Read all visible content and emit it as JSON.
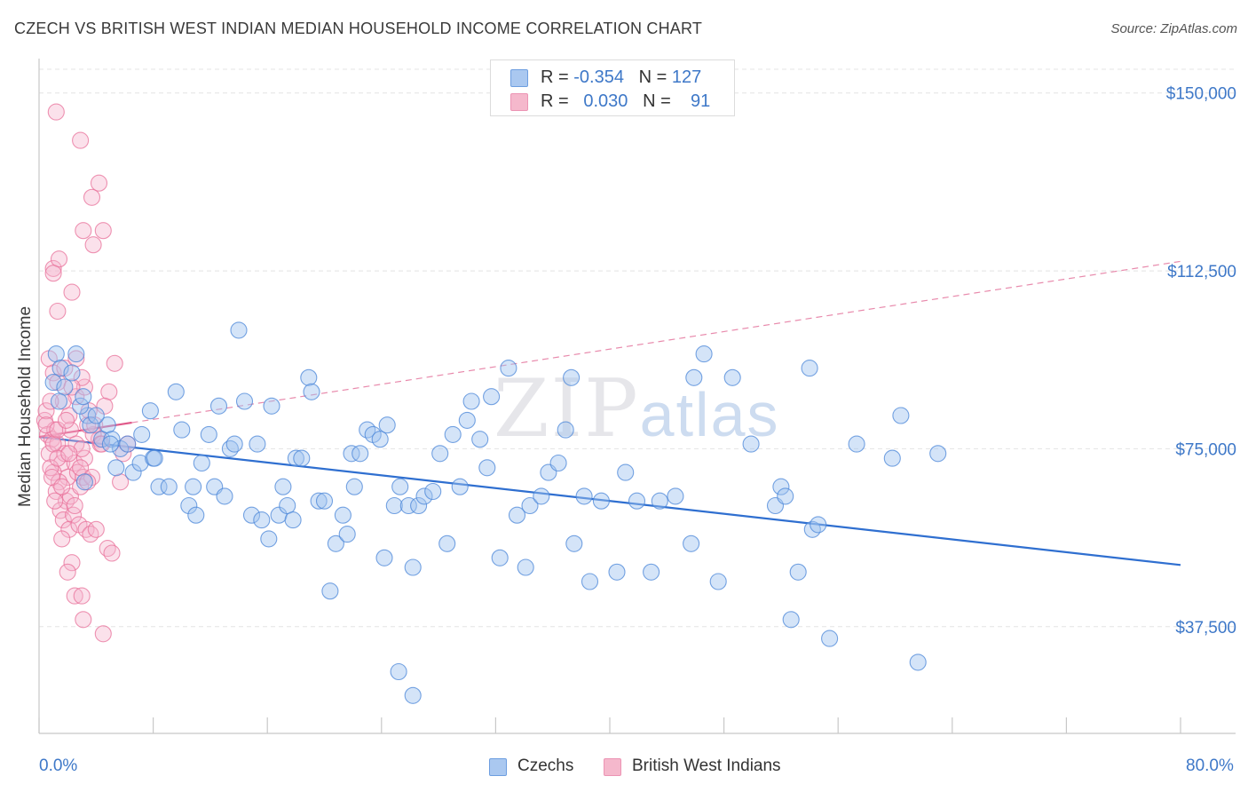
{
  "title": "CZECH VS BRITISH WEST INDIAN MEDIAN HOUSEHOLD INCOME CORRELATION CHART",
  "source": "Source: ZipAtlas.com",
  "watermark": {
    "zip": "ZIP",
    "atlas": "atlas"
  },
  "legend": {
    "rows": [
      {
        "r_label": "R =",
        "r_value": "-0.354",
        "n_label": "N =",
        "n_value": "127",
        "color": "#aac8f0"
      },
      {
        "r_label": "R =",
        "r_value": "0.030",
        "n_label": "N =",
        "n_value": "91",
        "color": "#f5b8cc"
      }
    ]
  },
  "bottom_legend": [
    {
      "label": "Czechs",
      "color": "#aac8f0"
    },
    {
      "label": "British West Indians",
      "color": "#f5b8cc"
    }
  ],
  "x_axis_labels": {
    "min": "0.0%",
    "max": "80.0%"
  },
  "chart_data": {
    "type": "scatter",
    "title": "CZECH VS BRITISH WEST INDIAN MEDIAN HOUSEHOLD INCOME CORRELATION CHART",
    "xlabel": "",
    "ylabel": "Median Household Income",
    "xlim": [
      0,
      80
    ],
    "ylim": [
      15000,
      155000
    ],
    "y_ticks": [
      {
        "value": 37500,
        "label": "$37,500"
      },
      {
        "value": 75000,
        "label": "$75,000"
      },
      {
        "value": 112500,
        "label": "$112,500"
      },
      {
        "value": 150000,
        "label": "$150,000"
      }
    ],
    "x_ticks": [
      0,
      8,
      16,
      24,
      32,
      40,
      48,
      56,
      64,
      72,
      80
    ],
    "grid": true,
    "series": [
      {
        "name": "Czechs",
        "color": "#4a86d8",
        "fill": "rgba(160,195,240,0.45)",
        "trend": {
          "x": [
            0,
            80
          ],
          "y": [
            77500,
            50500
          ],
          "style": "solid"
        },
        "points": [
          [
            1.2,
            95
          ],
          [
            1.5,
            92
          ],
          [
            1.0,
            89
          ],
          [
            1.8,
            88
          ],
          [
            1.4,
            85
          ],
          [
            2.6,
            95
          ],
          [
            2.3,
            91
          ],
          [
            3.4,
            82
          ],
          [
            2.9,
            84
          ],
          [
            3.6,
            80
          ],
          [
            4.4,
            77
          ],
          [
            4.8,
            80
          ],
          [
            5.1,
            77
          ],
          [
            3.2,
            68
          ],
          [
            5.7,
            75
          ],
          [
            6.6,
            70
          ],
          [
            7.1,
            72
          ],
          [
            7.2,
            78
          ],
          [
            8.0,
            73
          ],
          [
            8.4,
            67
          ],
          [
            7.8,
            83
          ],
          [
            9.6,
            87
          ],
          [
            10.0,
            79
          ],
          [
            10.8,
            67
          ],
          [
            11.4,
            72
          ],
          [
            10.5,
            63
          ],
          [
            11.0,
            61
          ],
          [
            11.9,
            78
          ],
          [
            12.3,
            67
          ],
          [
            12.6,
            84
          ],
          [
            13.0,
            65
          ],
          [
            13.4,
            75
          ],
          [
            13.7,
            76
          ],
          [
            14.4,
            85
          ],
          [
            14.9,
            61
          ],
          [
            15.3,
            76
          ],
          [
            15.6,
            60
          ],
          [
            16.1,
            56
          ],
          [
            16.3,
            84
          ],
          [
            16.8,
            61
          ],
          [
            17.1,
            67
          ],
          [
            17.4,
            63
          ],
          [
            17.8,
            60
          ],
          [
            18.0,
            73
          ],
          [
            18.4,
            73
          ],
          [
            18.9,
            90
          ],
          [
            19.1,
            87
          ],
          [
            19.6,
            64
          ],
          [
            20.0,
            64
          ],
          [
            20.4,
            45
          ],
          [
            20.8,
            55
          ],
          [
            21.3,
            61
          ],
          [
            21.6,
            57
          ],
          [
            21.9,
            74
          ],
          [
            22.1,
            67
          ],
          [
            22.5,
            74
          ],
          [
            23.0,
            79
          ],
          [
            23.4,
            78
          ],
          [
            23.9,
            77
          ],
          [
            24.2,
            52
          ],
          [
            24.4,
            80
          ],
          [
            24.9,
            63
          ],
          [
            25.3,
            67
          ],
          [
            25.9,
            63
          ],
          [
            26.2,
            50
          ],
          [
            26.6,
            63
          ],
          [
            27.0,
            65
          ],
          [
            27.6,
            66
          ],
          [
            28.1,
            74
          ],
          [
            28.6,
            55
          ],
          [
            29.0,
            78
          ],
          [
            29.5,
            67
          ],
          [
            30.0,
            81
          ],
          [
            30.3,
            85
          ],
          [
            30.9,
            77
          ],
          [
            31.4,
            71
          ],
          [
            31.7,
            86
          ],
          [
            32.3,
            52
          ],
          [
            32.9,
            92
          ],
          [
            33.5,
            61
          ],
          [
            34.1,
            50
          ],
          [
            34.4,
            63
          ],
          [
            35.2,
            65
          ],
          [
            35.7,
            70
          ],
          [
            36.4,
            72
          ],
          [
            36.9,
            79
          ],
          [
            37.3,
            90
          ],
          [
            37.5,
            55
          ],
          [
            38.2,
            65
          ],
          [
            38.6,
            47
          ],
          [
            39.4,
            64
          ],
          [
            40.5,
            49
          ],
          [
            41.1,
            70
          ],
          [
            41.9,
            64
          ],
          [
            42.9,
            49
          ],
          [
            43.5,
            64
          ],
          [
            44.6,
            65
          ],
          [
            45.7,
            55
          ],
          [
            45.9,
            90
          ],
          [
            46.6,
            95
          ],
          [
            47.6,
            47
          ],
          [
            48.6,
            90
          ],
          [
            49.9,
            76
          ],
          [
            51.6,
            63
          ],
          [
            52.0,
            67
          ],
          [
            52.3,
            65
          ],
          [
            52.7,
            39
          ],
          [
            53.2,
            49
          ],
          [
            54.0,
            92
          ],
          [
            54.2,
            58
          ],
          [
            54.6,
            59
          ],
          [
            55.4,
            35
          ],
          [
            57.3,
            76
          ],
          [
            59.8,
            73
          ],
          [
            60.4,
            82
          ],
          [
            61.6,
            30
          ],
          [
            63.0,
            74
          ],
          [
            25.2,
            28
          ],
          [
            26.2,
            23
          ],
          [
            9.1,
            67
          ],
          [
            8.1,
            73
          ],
          [
            6.2,
            76
          ],
          [
            5.0,
            76
          ],
          [
            4.0,
            82
          ],
          [
            3.1,
            86
          ],
          [
            5.4,
            71
          ],
          [
            14.0,
            100
          ]
        ]
      },
      {
        "name": "British West Indians",
        "color": "#e8709a",
        "fill": "rgba(245,180,205,0.40)",
        "trend": {
          "x": [
            0,
            80
          ],
          "y": [
            77500,
            114500
          ],
          "style": "solid-then-dashed",
          "solid_until_x": 6.5
        },
        "points": [
          [
            0.4,
            81
          ],
          [
            0.6,
            78
          ],
          [
            0.9,
            77
          ],
          [
            1.1,
            79
          ],
          [
            0.7,
            74
          ],
          [
            1.3,
            76
          ],
          [
            0.5,
            83
          ],
          [
            1.6,
            72
          ],
          [
            1.0,
            70
          ],
          [
            1.8,
            74
          ],
          [
            2.0,
            69
          ],
          [
            1.4,
            68
          ],
          [
            0.8,
            71
          ],
          [
            1.2,
            66
          ],
          [
            1.9,
            64
          ],
          [
            2.2,
            65
          ],
          [
            2.5,
            72
          ],
          [
            2.7,
            70
          ],
          [
            2.9,
            67
          ],
          [
            3.1,
            69
          ],
          [
            1.5,
            62
          ],
          [
            1.7,
            60
          ],
          [
            2.4,
            61
          ],
          [
            2.1,
            58
          ],
          [
            2.8,
            59
          ],
          [
            3.3,
            58
          ],
          [
            3.6,
            57
          ],
          [
            1.6,
            56
          ],
          [
            2.3,
            51
          ],
          [
            2.0,
            49
          ],
          [
            2.5,
            44
          ],
          [
            3.0,
            44
          ],
          [
            3.1,
            39
          ],
          [
            4.0,
            58
          ],
          [
            4.5,
            36
          ],
          [
            4.8,
            54
          ],
          [
            5.1,
            53
          ],
          [
            5.3,
            93
          ],
          [
            4.2,
            77
          ],
          [
            3.8,
            78
          ],
          [
            3.4,
            80
          ],
          [
            3.5,
            83
          ],
          [
            2.6,
            86
          ],
          [
            3.2,
            88
          ],
          [
            4.9,
            87
          ],
          [
            4.6,
            84
          ],
          [
            5.7,
            68
          ],
          [
            5.9,
            74
          ],
          [
            6.2,
            76
          ],
          [
            0.7,
            94
          ],
          [
            1.0,
            91
          ],
          [
            1.8,
            92
          ],
          [
            1.3,
            89
          ],
          [
            2.6,
            94
          ],
          [
            3.0,
            90
          ],
          [
            1.0,
            76
          ],
          [
            1.3,
            73
          ],
          [
            2.2,
            79
          ],
          [
            2.6,
            76
          ],
          [
            3.2,
            73
          ],
          [
            3.9,
            80
          ],
          [
            4.3,
            76
          ],
          [
            2.1,
            82
          ],
          [
            2.3,
            88
          ],
          [
            1.7,
            85
          ],
          [
            0.9,
            69
          ],
          [
            1.6,
            67
          ],
          [
            2.9,
            71
          ],
          [
            3.7,
            69
          ],
          [
            3.4,
            68
          ],
          [
            0.5,
            80
          ],
          [
            0.8,
            85
          ],
          [
            1.3,
            79
          ],
          [
            1.9,
            81
          ],
          [
            3.0,
            75
          ],
          [
            2.1,
            74
          ],
          [
            1.1,
            64
          ],
          [
            2.5,
            63
          ],
          [
            1.0,
            113
          ],
          [
            1.4,
            115
          ],
          [
            2.3,
            108
          ],
          [
            1.3,
            104
          ],
          [
            1.0,
            112
          ],
          [
            3.8,
            118
          ],
          [
            3.1,
            121
          ],
          [
            4.5,
            121
          ],
          [
            3.7,
            128
          ],
          [
            4.2,
            131
          ],
          [
            2.9,
            140
          ],
          [
            1.2,
            146
          ],
          [
            4.4,
            76
          ]
        ]
      }
    ]
  }
}
